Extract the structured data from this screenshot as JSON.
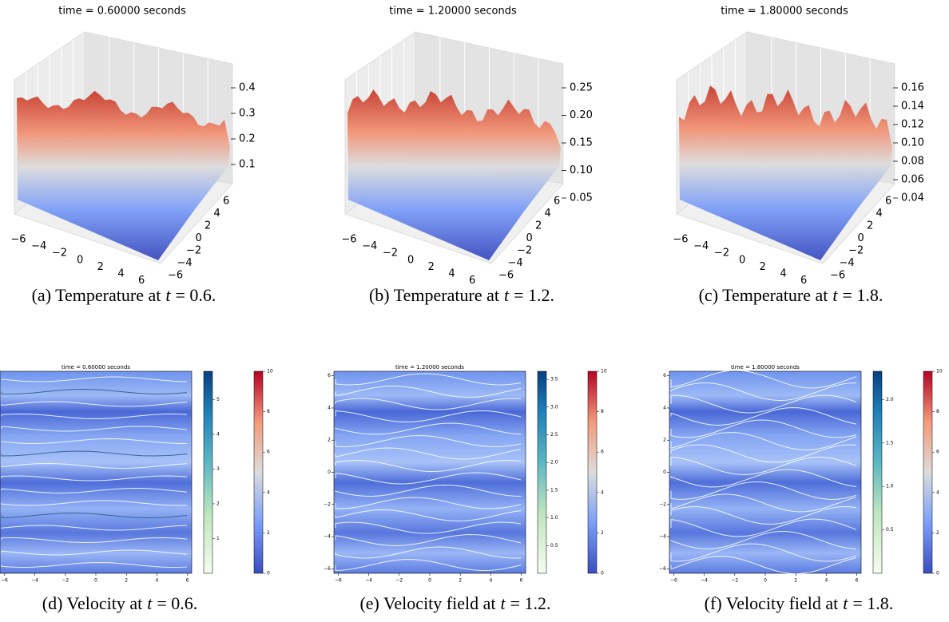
{
  "panels_top": [
    {
      "title": "time = 0.60000 seconds",
      "caption_prefix": "(a) Temperature at",
      "caption_var": "t",
      "caption_value": "= 0.6.",
      "x_ticks": [
        "−6",
        "−4",
        "−2",
        "0",
        "2",
        "4",
        "6"
      ],
      "y_ticks": [
        "−6",
        "−4",
        "−2",
        "0",
        "2",
        "4",
        "6"
      ],
      "z_ticks": [
        "0.4",
        "0.3",
        "0.2",
        "0.1"
      ]
    },
    {
      "title": "time = 1.20000 seconds",
      "caption_prefix": "(b) Temperature at",
      "caption_var": "t",
      "caption_value": "= 1.2.",
      "x_ticks": [
        "−6",
        "−4",
        "−2",
        "0",
        "2",
        "4",
        "6"
      ],
      "y_ticks": [
        "−6",
        "−4",
        "−2",
        "0",
        "2",
        "4",
        "6"
      ],
      "z_ticks": [
        "0.25",
        "0.20",
        "0.15",
        "0.10",
        "0.05"
      ]
    },
    {
      "title": "time = 1.80000 seconds",
      "caption_prefix": "(c) Temperature at",
      "caption_var": "t",
      "caption_value": "= 1.8.",
      "x_ticks": [
        "−6",
        "−4",
        "−2",
        "0",
        "2",
        "4",
        "6"
      ],
      "y_ticks": [
        "−6",
        "−4",
        "−2",
        "0",
        "2",
        "4",
        "6"
      ],
      "z_ticks": [
        "0.16",
        "0.14",
        "0.12",
        "0.10",
        "0.08",
        "0.06",
        "0.04"
      ]
    }
  ],
  "panels_bottom": [
    {
      "title": "time = 0.60000 seconds",
      "caption_prefix": "(d) Velocity at",
      "caption_var": "t",
      "caption_value": "= 0.6.",
      "x_ticks": [
        "−6",
        "−4",
        "−2",
        "0",
        "2",
        "4",
        "6"
      ],
      "speed_ticks": [
        "5",
        "4",
        "3",
        "2",
        "1"
      ],
      "temp_ticks": [
        "10",
        "8",
        "6",
        "4",
        "2",
        "0"
      ]
    },
    {
      "title": "time = 1.20000 seconds",
      "caption_prefix": "(e) Velocity field at",
      "caption_var": "t",
      "caption_value": "= 1.2.",
      "x_ticks": [
        "−6",
        "−4",
        "−2",
        "0",
        "2",
        "4",
        "6"
      ],
      "y_ticks": [
        "6",
        "4",
        "2",
        "0",
        "−2",
        "−4",
        "−6"
      ],
      "speed_ticks": [
        "3.5",
        "3.0",
        "2.5",
        "2.0",
        "1.5",
        "1.0",
        "0.5"
      ],
      "temp_ticks": [
        "10",
        "8",
        "6",
        "4",
        "2",
        "0"
      ]
    },
    {
      "title": "time = 1.80000 seconds",
      "caption_prefix": "(f) Velocity field at",
      "caption_var": "t",
      "caption_value": "= 1.8.",
      "x_ticks": [
        "−6",
        "−4",
        "−2",
        "0",
        "2",
        "4",
        "6"
      ],
      "y_ticks": [
        "6",
        "4",
        "2",
        "0",
        "−2",
        "−4",
        "−6"
      ],
      "speed_ticks": [
        "2.0",
        "1.5",
        "1.0",
        "0.5"
      ],
      "temp_ticks": [
        "10",
        "8",
        "6",
        "4",
        "2",
        "0"
      ]
    }
  ]
}
